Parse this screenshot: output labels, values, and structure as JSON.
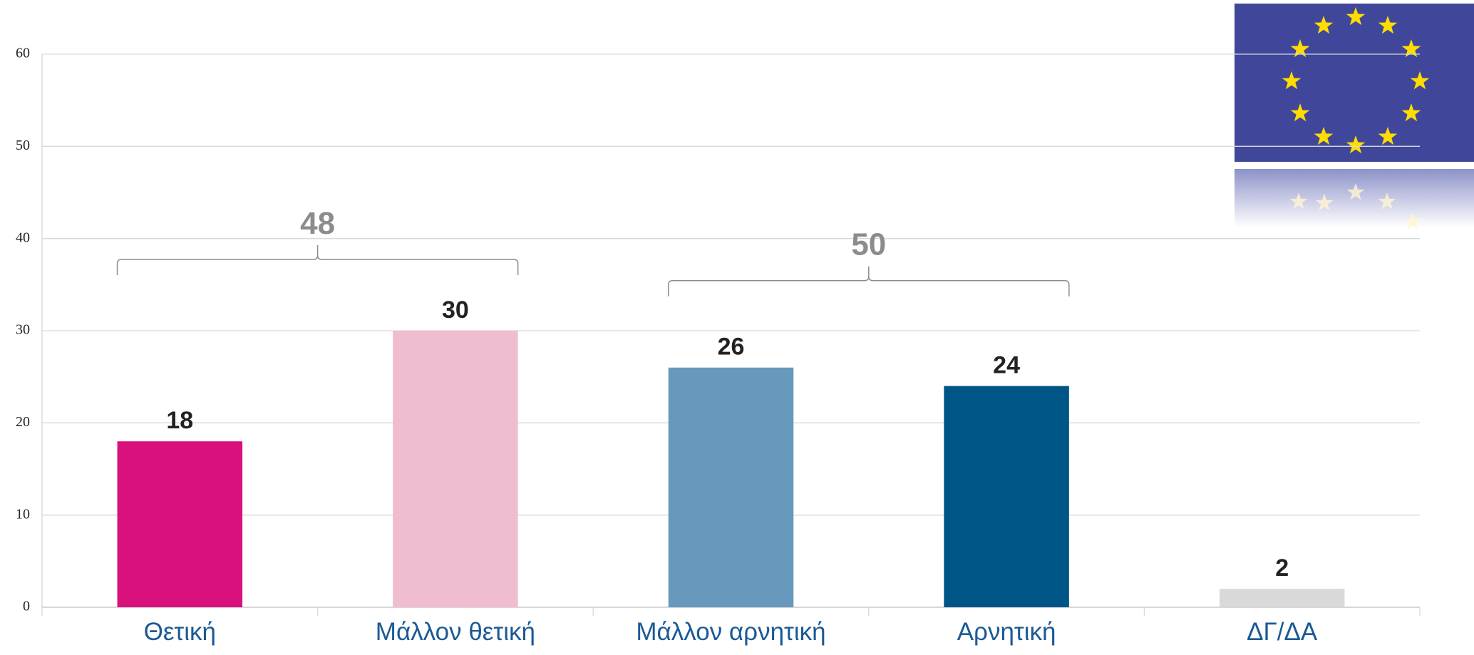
{
  "chart_data": {
    "type": "bar",
    "categories": [
      "Θετική",
      "Μάλλον θετική",
      "Μάλλον αρνητική",
      "Αρνητική",
      "ΔΓ/ΔΑ"
    ],
    "values": [
      18,
      30,
      26,
      24,
      2
    ],
    "colors": [
      "#d8117d",
      "#f0bcd0",
      "#6699bb",
      "#005587",
      "#d9d9d9"
    ],
    "ylim": [
      0,
      60
    ],
    "yticks": [
      0,
      10,
      20,
      30,
      40,
      50,
      60
    ],
    "grid": true,
    "annotations": [
      {
        "value": 48,
        "from": "Θετική",
        "to": "Μάλλον θετική"
      },
      {
        "value": 50,
        "from": "Μάλλον αρνητική",
        "to": "Αρνητική"
      }
    ]
  }
}
